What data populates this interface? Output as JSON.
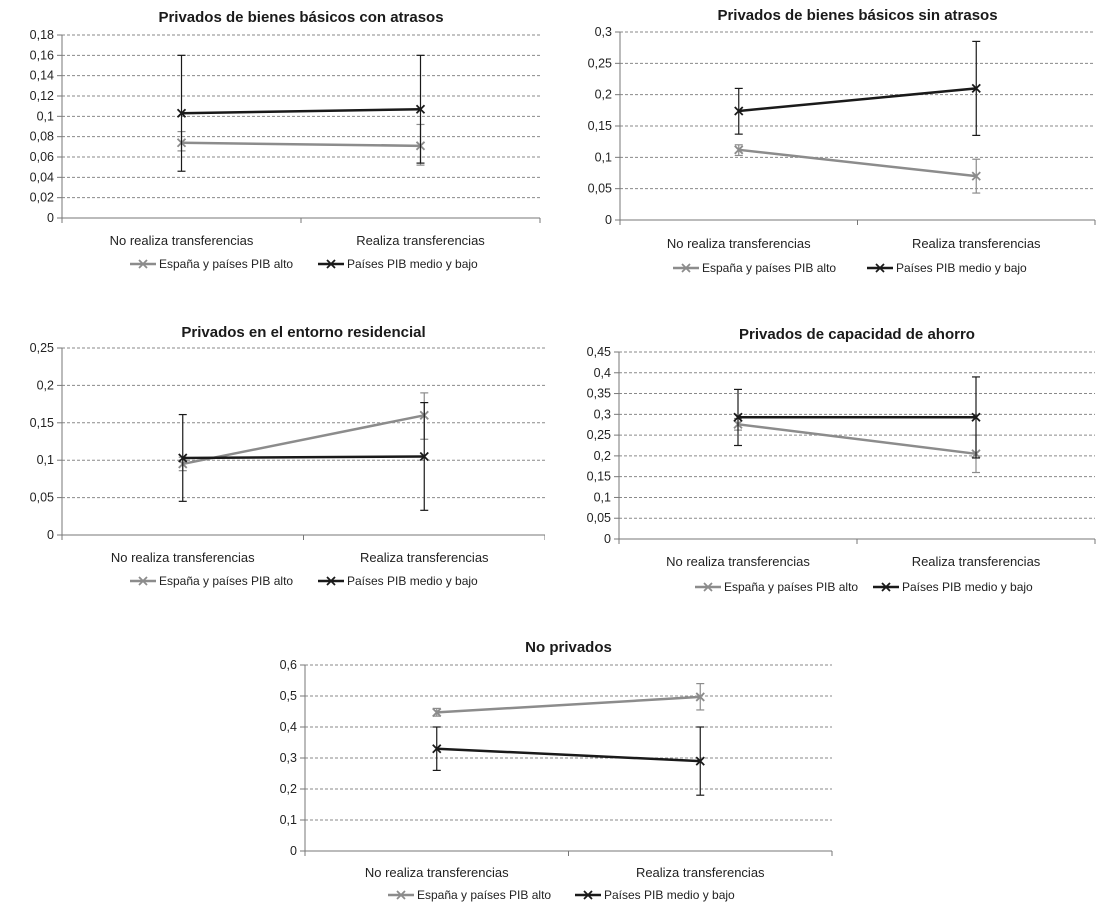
{
  "colors": {
    "high": "#8c8c8c",
    "low": "#1a1a1a",
    "grid": "#8a8a8a",
    "axis": "#777777"
  },
  "chart_data": [
    {
      "type": "line",
      "title": "Privados de bienes básicos con atrasos",
      "categories": [
        "No realiza transferencias",
        "Realiza transferencias"
      ],
      "yticks": [
        "0",
        "0,02",
        "0,04",
        "0,06",
        "0,08",
        "0,1",
        "0,12",
        "0,14",
        "0,16",
        "0,18"
      ],
      "ylim": [
        0,
        0.18
      ],
      "grid": true,
      "legend_position": "bottom",
      "series": [
        {
          "name": "España y países PIB alto",
          "color": "high",
          "values": [
            0.074,
            0.071
          ],
          "err_low": [
            0.066,
            0.052
          ],
          "err_high": [
            0.085,
            0.092
          ]
        },
        {
          "name": "Países PIB medio y bajo",
          "color": "low",
          "values": [
            0.103,
            0.107
          ],
          "err_low": [
            0.046,
            0.054
          ],
          "err_high": [
            0.16,
            0.16
          ]
        }
      ]
    },
    {
      "type": "line",
      "title": "Privados de bienes básicos sin atrasos",
      "categories": [
        "No realiza transferencias",
        "Realiza transferencias"
      ],
      "yticks": [
        "0",
        "0,05",
        "0,1",
        "0,15",
        "0,2",
        "0,25",
        "0,3"
      ],
      "ylim": [
        0,
        0.3
      ],
      "grid": true,
      "legend_position": "bottom",
      "series": [
        {
          "name": "España y países PIB alto",
          "color": "high",
          "values": [
            0.112,
            0.07
          ],
          "err_low": [
            0.103,
            0.043
          ],
          "err_high": [
            0.12,
            0.097
          ]
        },
        {
          "name": "Países PIB medio y bajo",
          "color": "low",
          "values": [
            0.174,
            0.21
          ],
          "err_low": [
            0.137,
            0.135
          ],
          "err_high": [
            0.21,
            0.285
          ]
        }
      ]
    },
    {
      "type": "line",
      "title": "Privados en el entorno residencial",
      "categories": [
        "No realiza transferencias",
        "Realiza transferencias"
      ],
      "yticks": [
        "0",
        "0,05",
        "0,1",
        "0,15",
        "0,2",
        "0,25"
      ],
      "ylim": [
        0,
        0.25
      ],
      "grid": true,
      "legend_position": "bottom",
      "series": [
        {
          "name": "España y países PIB alto",
          "color": "high",
          "values": [
            0.095,
            0.16
          ],
          "err_low": [
            0.086,
            0.128
          ],
          "err_high": [
            0.104,
            0.19
          ]
        },
        {
          "name": "Países PIB medio y bajo",
          "color": "low",
          "values": [
            0.103,
            0.105
          ],
          "err_low": [
            0.045,
            0.033
          ],
          "err_high": [
            0.161,
            0.177
          ]
        }
      ]
    },
    {
      "type": "line",
      "title": "Privados de capacidad de ahorro",
      "categories": [
        "No realiza transferencias",
        "Realiza transferencias"
      ],
      "yticks": [
        "0",
        "0,05",
        "0,1",
        "0,15",
        "0,2",
        "0,25",
        "0,3",
        "0,35",
        "0,4",
        "0,45"
      ],
      "ylim": [
        0,
        0.45
      ],
      "grid": true,
      "legend_position": "bottom",
      "series": [
        {
          "name": "España y países PIB alto",
          "color": "high",
          "values": [
            0.276,
            0.205
          ],
          "err_low": [
            0.262,
            0.16
          ],
          "err_high": [
            0.29,
            0.25
          ]
        },
        {
          "name": "Países PIB medio y bajo",
          "color": "low",
          "values": [
            0.293,
            0.293
          ],
          "err_low": [
            0.225,
            0.195
          ],
          "err_high": [
            0.36,
            0.39
          ]
        }
      ]
    },
    {
      "type": "line",
      "title": "No privados",
      "categories": [
        "No realiza transferencias",
        "Realiza transferencias"
      ],
      "yticks": [
        "0",
        "0,1",
        "0,2",
        "0,3",
        "0,4",
        "0,5",
        "0,6"
      ],
      "ylim": [
        0,
        0.6
      ],
      "grid": true,
      "legend_position": "bottom",
      "series": [
        {
          "name": "España y países PIB alto",
          "color": "high",
          "values": [
            0.447,
            0.497
          ],
          "err_low": [
            0.435,
            0.455
          ],
          "err_high": [
            0.46,
            0.54
          ]
        },
        {
          "name": "Países PIB medio y bajo",
          "color": "low",
          "values": [
            0.33,
            0.29
          ],
          "err_low": [
            0.26,
            0.18
          ],
          "err_high": [
            0.4,
            0.4
          ]
        }
      ]
    }
  ]
}
